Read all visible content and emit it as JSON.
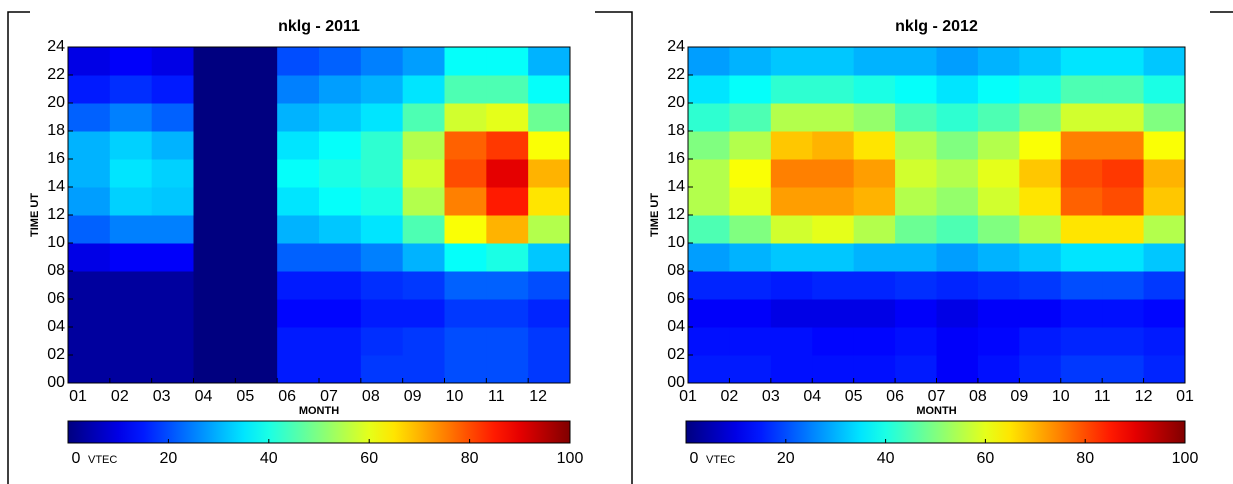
{
  "chart_data": [
    {
      "type": "heatmap",
      "title": "nklg - 2011",
      "x_label": "MONTH",
      "y_label": "TIME UT",
      "colorbar_label": "VTEC",
      "colormap": "jet",
      "clim": [
        0,
        100
      ],
      "colorbar_ticks": [
        0,
        20,
        40,
        60,
        80,
        100
      ],
      "xlim": [
        1,
        13
      ],
      "ylim": [
        0,
        24
      ],
      "xticks": [
        {
          "value": 1,
          "label": "01"
        },
        {
          "value": 2,
          "label": "02"
        },
        {
          "value": 3,
          "label": "03"
        },
        {
          "value": 4,
          "label": "04"
        },
        {
          "value": 5,
          "label": "05"
        },
        {
          "value": 6,
          "label": "06"
        },
        {
          "value": 7,
          "label": "07"
        },
        {
          "value": 8,
          "label": "08"
        },
        {
          "value": 9,
          "label": "09"
        },
        {
          "value": 10,
          "label": "10"
        },
        {
          "value": 11,
          "label": "11"
        },
        {
          "value": 12,
          "label": "12"
        }
      ],
      "yticks": [
        {
          "value": 0,
          "label": "00"
        },
        {
          "value": 2,
          "label": "02"
        },
        {
          "value": 4,
          "label": "04"
        },
        {
          "value": 6,
          "label": "06"
        },
        {
          "value": 8,
          "label": "08"
        },
        10,
        12,
        14,
        16,
        18,
        20,
        22,
        24
      ],
      "x": [
        1,
        2,
        3,
        4,
        5,
        6,
        7,
        8,
        9,
        10,
        11,
        12
      ],
      "y": [
        0,
        2,
        4,
        6,
        8,
        10,
        12,
        14,
        16,
        18,
        20,
        22
      ],
      "z": [
        [
          3,
          3,
          3,
          0,
          0,
          15,
          15,
          18,
          18,
          20,
          20,
          18
        ],
        [
          3,
          3,
          3,
          0,
          0,
          15,
          15,
          17,
          18,
          20,
          20,
          18
        ],
        [
          3,
          3,
          3,
          0,
          0,
          13,
          13,
          15,
          15,
          18,
          18,
          16
        ],
        [
          3,
          3,
          3,
          0,
          0,
          15,
          15,
          17,
          18,
          22,
          22,
          20
        ],
        [
          10,
          12,
          12,
          0,
          0,
          22,
          22,
          25,
          30,
          38,
          40,
          32
        ],
        [
          22,
          25,
          25,
          0,
          0,
          30,
          32,
          35,
          45,
          62,
          70,
          55
        ],
        [
          28,
          33,
          32,
          0,
          0,
          35,
          38,
          40,
          55,
          75,
          85,
          65
        ],
        [
          30,
          35,
          33,
          0,
          0,
          38,
          40,
          42,
          58,
          80,
          90,
          70
        ],
        [
          30,
          33,
          30,
          0,
          0,
          35,
          38,
          42,
          55,
          78,
          82,
          62
        ],
        [
          22,
          25,
          22,
          0,
          0,
          30,
          32,
          35,
          45,
          58,
          60,
          48
        ],
        [
          15,
          17,
          15,
          0,
          0,
          25,
          28,
          30,
          35,
          45,
          45,
          38
        ],
        [
          10,
          12,
          10,
          0,
          0,
          20,
          22,
          25,
          28,
          38,
          38,
          30
        ]
      ]
    },
    {
      "type": "heatmap",
      "title": "nklg - 2012",
      "x_label": "MONTH",
      "y_label": "TIME UT",
      "colorbar_label": "VTEC",
      "colormap": "jet",
      "clim": [
        0,
        100
      ],
      "colorbar_ticks": [
        0,
        20,
        40,
        60,
        80,
        100
      ],
      "xlim": [
        1,
        13
      ],
      "ylim": [
        0,
        24
      ],
      "xticks": [
        {
          "value": 1,
          "label": "01"
        },
        {
          "value": 2,
          "label": "02"
        },
        {
          "value": 3,
          "label": "03"
        },
        {
          "value": 4,
          "label": "04"
        },
        {
          "value": 5,
          "label": "05"
        },
        {
          "value": 6,
          "label": "06"
        },
        {
          "value": 7,
          "label": "07"
        },
        {
          "value": 8,
          "label": "08"
        },
        {
          "value": 9,
          "label": "09"
        },
        {
          "value": 10,
          "label": "10"
        },
        {
          "value": 11,
          "label": "11"
        },
        {
          "value": 12,
          "label": "12"
        },
        {
          "value": 13,
          "label": "01"
        }
      ],
      "yticks": [
        {
          "value": 0,
          "label": "00"
        },
        {
          "value": 2,
          "label": "02"
        },
        {
          "value": 4,
          "label": "04"
        },
        {
          "value": 6,
          "label": "06"
        },
        {
          "value": 8,
          "label": "08"
        },
        10,
        12,
        14,
        16,
        18,
        20,
        22,
        24
      ],
      "x": [
        1,
        2,
        3,
        4,
        5,
        6,
        7,
        8,
        9,
        10,
        11,
        12
      ],
      "y": [
        0,
        2,
        4,
        6,
        8,
        10,
        12,
        14,
        16,
        18,
        20,
        22
      ],
      "z": [
        [
          15,
          15,
          14,
          14,
          14,
          15,
          12,
          14,
          16,
          18,
          18,
          16
        ],
        [
          14,
          14,
          14,
          13,
          13,
          14,
          12,
          13,
          15,
          16,
          16,
          15
        ],
        [
          12,
          12,
          10,
          10,
          10,
          12,
          10,
          12,
          12,
          14,
          14,
          13
        ],
        [
          16,
          16,
          15,
          16,
          16,
          17,
          16,
          17,
          18,
          20,
          20,
          18
        ],
        [
          28,
          30,
          32,
          32,
          30,
          30,
          28,
          30,
          32,
          35,
          35,
          32
        ],
        [
          45,
          50,
          58,
          60,
          55,
          48,
          45,
          50,
          55,
          65,
          65,
          55
        ],
        [
          55,
          60,
          72,
          72,
          70,
          55,
          52,
          58,
          65,
          78,
          80,
          68
        ],
        [
          55,
          62,
          75,
          75,
          72,
          58,
          55,
          60,
          68,
          80,
          82,
          70
        ],
        [
          50,
          55,
          68,
          70,
          65,
          55,
          50,
          55,
          62,
          75,
          75,
          62
        ],
        [
          42,
          45,
          55,
          55,
          52,
          45,
          42,
          45,
          50,
          58,
          58,
          50
        ],
        [
          35,
          38,
          42,
          42,
          40,
          38,
          35,
          38,
          40,
          45,
          45,
          40
        ],
        [
          28,
          30,
          32,
          32,
          30,
          30,
          28,
          30,
          32,
          35,
          35,
          32
        ]
      ]
    }
  ]
}
